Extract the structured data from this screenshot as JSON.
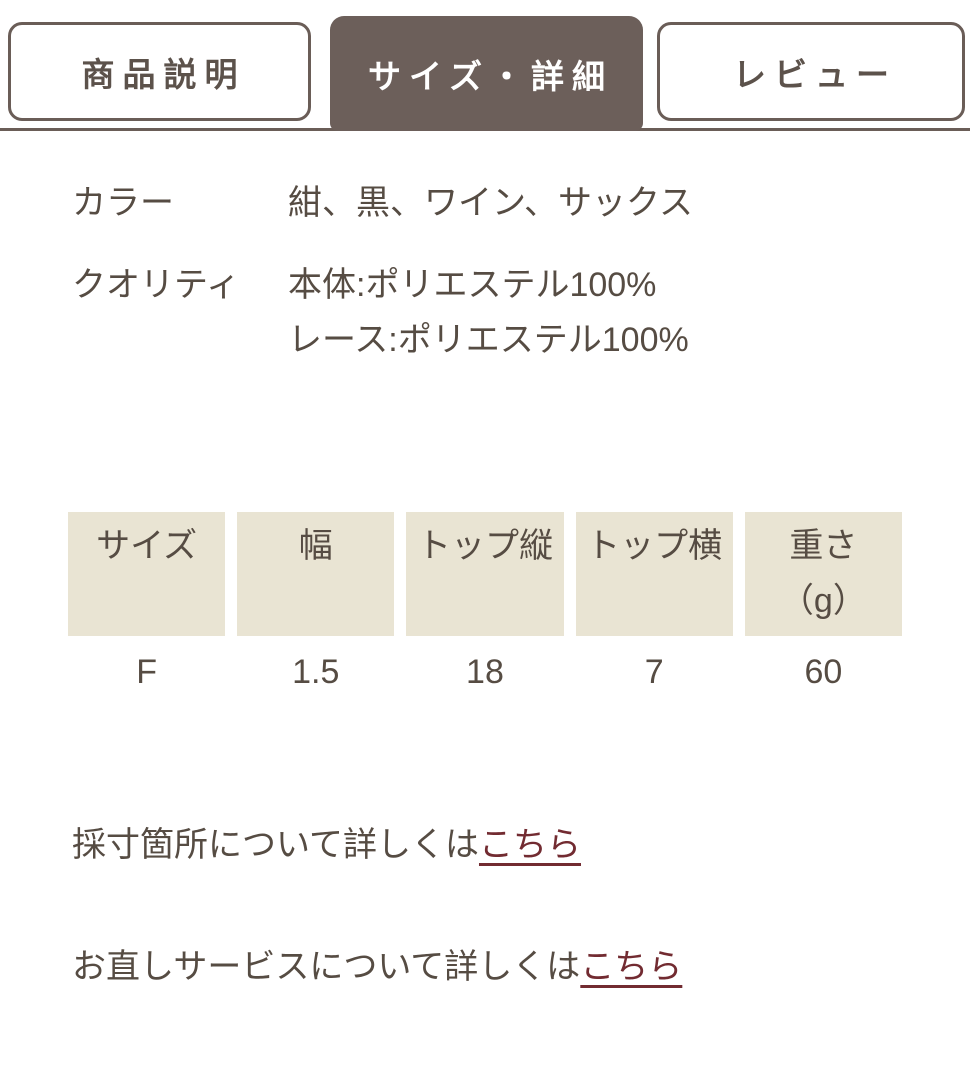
{
  "tabs": [
    {
      "label": "商品説明",
      "active": false
    },
    {
      "label": "サイズ・詳細",
      "active": true
    },
    {
      "label": "レビュー",
      "active": false
    }
  ],
  "specs": [
    {
      "label": "カラー",
      "value": "紺、黒、ワイン、サックス"
    },
    {
      "label": "クオリティ",
      "value_lines": [
        "本体:ポリエステル100%",
        "レース:ポリエステル100%"
      ]
    }
  ],
  "size_table": {
    "headers": [
      "サイズ",
      "幅",
      "トップ縦",
      "トップ横",
      "重さ\n（g）"
    ],
    "rows": [
      [
        "F",
        "1.5",
        "18",
        "7",
        "60"
      ]
    ]
  },
  "notes": [
    {
      "text": "採寸箇所について詳しくは",
      "link_label": "こちら"
    },
    {
      "text": "お直しサービスについて詳しくは",
      "link_label": "こちら"
    }
  ],
  "colors": {
    "accent_brown": "#6c5f5a",
    "tab_border": "#6a5d57",
    "table_header_beige": "#e9e4d3",
    "body_text": "#564c43",
    "link_maroon": "#722b31"
  }
}
